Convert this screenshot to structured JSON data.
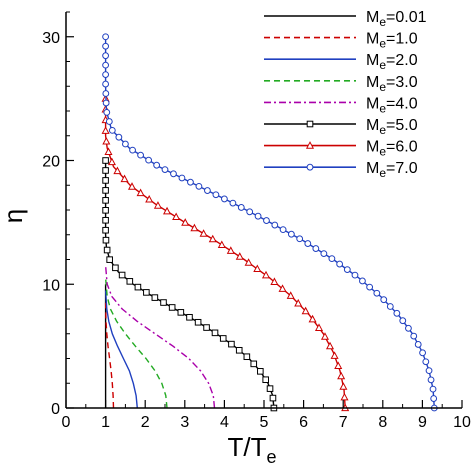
{
  "chart_data": {
    "type": "line",
    "xlabel": "T/T",
    "xlabel_sub": "e",
    "ylabel": "η",
    "xlim": [
      0,
      10
    ],
    "ylim": [
      0,
      32
    ],
    "xticks": [
      0,
      1,
      2,
      3,
      4,
      5,
      6,
      7,
      8,
      9,
      10
    ],
    "yticks": [
      0,
      10,
      20,
      30
    ],
    "grid": false,
    "legend_position": "top-right",
    "series": [
      {
        "name": "M",
        "name_sub": "e",
        "name_suffix": "=0.01",
        "color": "#000000",
        "dash": "solid",
        "marker": "none",
        "x": [
          1.0,
          1.0,
          1.0,
          1.0,
          1.0,
          1.0
        ],
        "y": [
          0,
          2,
          4,
          6,
          8,
          10
        ]
      },
      {
        "name": "M",
        "name_sub": "e",
        "name_suffix": "=1.0",
        "color": "#cc0000",
        "dash": "dashed",
        "marker": "none",
        "x": [
          1.2,
          1.19,
          1.17,
          1.14,
          1.1,
          1.06,
          1.03,
          1.01,
          1.0
        ],
        "y": [
          0,
          1,
          2,
          3,
          4,
          5,
          6,
          7,
          8.5
        ]
      },
      {
        "name": "M",
        "name_sub": "e",
        "name_suffix": "=2.0",
        "color": "#2040c0",
        "dash": "solid",
        "marker": "none",
        "x": [
          1.8,
          1.77,
          1.7,
          1.6,
          1.45,
          1.3,
          1.17,
          1.08,
          1.03,
          1.0
        ],
        "y": [
          0,
          1,
          2,
          3,
          4,
          5,
          6,
          7,
          8,
          9.5
        ]
      },
      {
        "name": "M",
        "name_sub": "e",
        "name_suffix": "=3.0",
        "color": "#22aa22",
        "dash": "dashed",
        "marker": "none",
        "x": [
          2.55,
          2.52,
          2.42,
          2.25,
          2.02,
          1.75,
          1.5,
          1.28,
          1.12,
          1.04,
          1.0
        ],
        "y": [
          0,
          1,
          2,
          3,
          4,
          5,
          6,
          7,
          8,
          9,
          10.5
        ]
      },
      {
        "name": "M",
        "name_sub": "e",
        "name_suffix": "=4.0",
        "color": "#aa00aa",
        "dash": "dashdot",
        "marker": "none",
        "x": [
          3.75,
          3.72,
          3.6,
          3.4,
          3.1,
          2.7,
          2.25,
          1.8,
          1.42,
          1.16,
          1.04,
          1.0
        ],
        "y": [
          0,
          1,
          2,
          3,
          4,
          5,
          6,
          7,
          8,
          9,
          10,
          11.5
        ]
      },
      {
        "name": "M",
        "name_sub": "e",
        "name_suffix": "=5.0",
        "color": "#000000",
        "dash": "solid",
        "marker": "square",
        "x": [
          5.25,
          5.22,
          5.1,
          4.9,
          4.62,
          4.25,
          3.8,
          3.3,
          2.75,
          2.2,
          1.7,
          1.32,
          1.1,
          1.02,
          1.0,
          1.0,
          1.0,
          1.0,
          1.0,
          1.0,
          1.0
        ],
        "y": [
          0,
          1,
          2,
          3,
          4,
          5,
          6,
          7,
          8,
          9,
          10,
          11,
          12,
          13,
          14,
          15,
          16,
          17,
          18,
          19,
          20
        ]
      },
      {
        "name": "M",
        "name_sub": "e",
        "name_suffix": "=6.0",
        "color": "#cc0000",
        "dash": "solid",
        "marker": "triangle",
        "x": [
          7.05,
          7.02,
          6.92,
          6.75,
          6.5,
          6.15,
          5.7,
          5.15,
          4.5,
          3.78,
          3.0,
          2.25,
          1.62,
          1.2,
          1.04,
          1.0,
          1.0,
          1.0,
          1.0
        ],
        "y": [
          0,
          1.5,
          3,
          4.5,
          6,
          7.5,
          9,
          10.5,
          12,
          13.5,
          15,
          16.5,
          18,
          19.5,
          21,
          22,
          23,
          24,
          25
        ]
      },
      {
        "name": "M",
        "name_sub": "e",
        "name_suffix": "=7.0",
        "color": "#2040c0",
        "dash": "solid",
        "marker": "circle",
        "x": [
          9.3,
          9.27,
          9.17,
          9.0,
          8.75,
          8.4,
          7.95,
          7.4,
          6.75,
          6.0,
          5.15,
          4.25,
          3.3,
          2.35,
          1.6,
          1.15,
          1.02,
          1.0,
          1.0,
          1.0
        ],
        "y": [
          0,
          1.5,
          3,
          4.5,
          6,
          7.5,
          9,
          10.5,
          12,
          13.5,
          15,
          16.5,
          18,
          19.5,
          21,
          22.5,
          24,
          26,
          28,
          30
        ]
      }
    ]
  }
}
